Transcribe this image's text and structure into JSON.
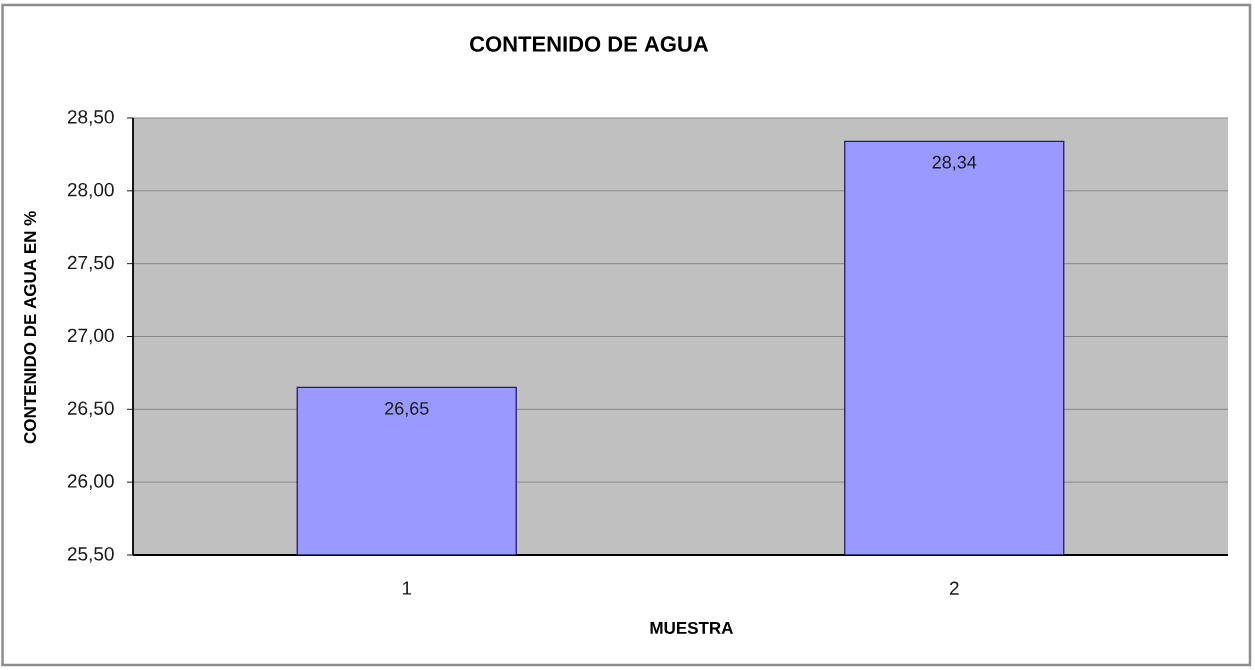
{
  "chart_data": {
    "type": "bar",
    "title": "CONTENIDO DE AGUA",
    "xlabel": "MUESTRA",
    "ylabel": "CONTENIDO DE AGUA EN %",
    "categories": [
      "1",
      "2"
    ],
    "values": [
      26.65,
      28.34
    ],
    "value_labels": [
      "26,65",
      "28,34"
    ],
    "color": "#9999ff",
    "ylim": [
      25.5,
      28.5
    ],
    "yticks": [
      {
        "value": 25.5,
        "label": "25,50"
      },
      {
        "value": 26,
        "label": "26,00"
      },
      {
        "value": 26.5,
        "label": "26,50"
      },
      {
        "value": 27,
        "label": "27,00"
      },
      {
        "value": 27.5,
        "label": "27,50"
      },
      {
        "value": 28,
        "label": "28,00"
      },
      {
        "value": 28.5,
        "label": "28,50"
      }
    ],
    "grid": "y"
  }
}
